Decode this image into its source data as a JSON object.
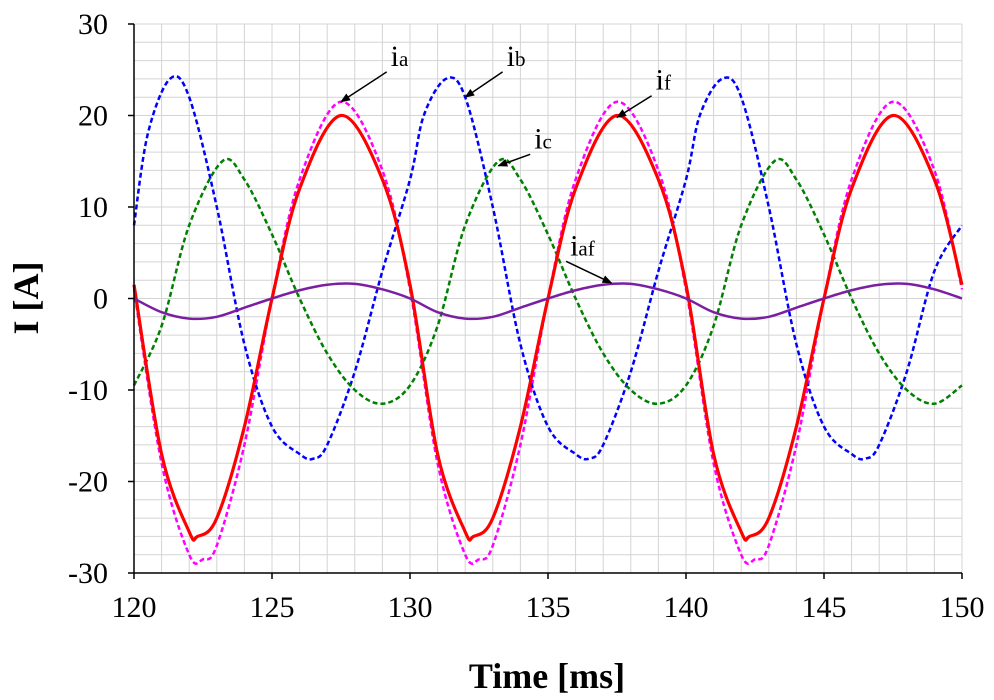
{
  "chart_data": {
    "type": "line",
    "title": "",
    "xlabel": "Time [ms]",
    "ylabel": "I [A]",
    "xlim": [
      120,
      150
    ],
    "ylim": [
      -30,
      30
    ],
    "x_ticks": [
      "120",
      "125",
      "130",
      "135",
      "140",
      "145",
      "150"
    ],
    "y_ticks": [
      "30",
      "20",
      "10",
      "0",
      "-10",
      "-20",
      "-30"
    ],
    "grid": true,
    "legend": "none",
    "colors": {
      "i_a": "#ff00ff",
      "i_b": "#0000ff",
      "i_c": "#008000",
      "i_f": "#ff0000",
      "i_af": "#7b1fa2"
    },
    "series": [
      {
        "key": "i_a",
        "style": "dashed",
        "x": [
          120,
          121,
          122,
          122.5,
          123,
          124,
          125,
          126,
          127.5,
          129,
          130,
          131,
          132,
          132.5,
          133,
          134,
          135,
          136,
          137.5,
          139,
          140,
          141,
          142,
          142.5,
          143,
          144,
          145,
          146,
          147.5,
          149,
          150
        ],
        "y": [
          1,
          -18,
          -28,
          -28.5,
          -27,
          -16,
          0,
          13,
          21.5,
          14,
          1,
          -18,
          -28,
          -28.5,
          -27,
          -16,
          0,
          13,
          21.5,
          14,
          1,
          -18,
          -28,
          -28.5,
          -27,
          -16,
          0,
          13,
          21.5,
          14,
          1
        ]
      },
      {
        "key": "i_b",
        "style": "dashed",
        "x": [
          120,
          120.5,
          121.3,
          122,
          123,
          124,
          125,
          126,
          126.5,
          127,
          128,
          129,
          130,
          130.5,
          131.3,
          132,
          133,
          134,
          135,
          136,
          136.5,
          137,
          138,
          139,
          140,
          140.5,
          141.3,
          142,
          143,
          144,
          145,
          146,
          146.5,
          147,
          148,
          149,
          150
        ],
        "y": [
          8,
          18,
          24,
          22,
          10,
          -5,
          -14,
          -17,
          -17.5,
          -16,
          -8,
          3,
          13,
          20,
          24,
          22,
          10,
          -5,
          -14,
          -17,
          -17.5,
          -16,
          -8,
          3,
          13,
          20,
          24,
          22,
          10,
          -5,
          -14,
          -17,
          -17.5,
          -16,
          -8,
          3,
          8
        ]
      },
      {
        "key": "i_c",
        "style": "dashed",
        "x": [
          120,
          121,
          122,
          123.2,
          124,
          125,
          126,
          127,
          128,
          129,
          130,
          131,
          132,
          133.2,
          134,
          135,
          136,
          137,
          138,
          139,
          140,
          141,
          142,
          143.2,
          144,
          145,
          146,
          147,
          148,
          149,
          150
        ],
        "y": [
          -9.5,
          -3,
          8,
          15,
          13,
          7,
          0,
          -6,
          -10,
          -11.5,
          -9.5,
          -3,
          8,
          15,
          13,
          7,
          0,
          -6,
          -10,
          -11.5,
          -9.5,
          -3,
          8,
          15,
          13,
          7,
          0,
          -6,
          -10,
          -11.5,
          -9.5
        ]
      },
      {
        "key": "i_f",
        "style": "solid",
        "x": [
          120,
          121,
          122,
          122.3,
          123,
          124,
          125,
          126,
          127.5,
          129,
          130,
          131,
          132,
          132.3,
          133,
          134,
          135,
          136,
          137.5,
          139,
          140,
          141,
          142,
          142.3,
          143,
          144,
          145,
          146,
          147.5,
          149,
          150
        ],
        "y": [
          1.5,
          -17,
          -25.5,
          -26,
          -24,
          -14,
          0,
          12,
          20,
          13,
          1.5,
          -17,
          -25.5,
          -26,
          -24,
          -14,
          0,
          12,
          20,
          13,
          1.5,
          -17,
          -25.5,
          -26,
          -24,
          -14,
          0,
          12,
          20,
          13,
          1.5
        ]
      },
      {
        "key": "i_af",
        "style": "solid",
        "x": [
          120,
          121,
          122,
          123,
          124,
          125,
          126,
          127,
          128,
          129,
          130,
          131,
          132,
          133,
          134,
          135,
          136,
          137,
          138,
          139,
          140,
          141,
          142,
          143,
          144,
          145,
          146,
          147,
          148,
          149,
          150
        ],
        "y": [
          0,
          -1.5,
          -2.2,
          -2,
          -1,
          0,
          0.9,
          1.5,
          1.6,
          1,
          0,
          -1.5,
          -2.2,
          -2,
          -1,
          0,
          0.9,
          1.5,
          1.6,
          1,
          0,
          -1.5,
          -2.2,
          -2,
          -1,
          0,
          0.9,
          1.5,
          1.6,
          1,
          0
        ]
      }
    ],
    "annotations": [
      {
        "main": "i",
        "sub": "a",
        "target": [
          127.5,
          21.5
        ],
        "label_at": [
          129.3,
          25.2
        ]
      },
      {
        "main": "i",
        "sub": "b",
        "target": [
          132.0,
          22.0
        ],
        "label_at": [
          133.5,
          25.2
        ]
      },
      {
        "main": "i",
        "sub": "c",
        "target": [
          133.2,
          14.5
        ],
        "label_at": [
          134.5,
          16.2
        ]
      },
      {
        "main": "i",
        "sub": "f",
        "target": [
          137.5,
          19.8
        ],
        "label_at": [
          138.9,
          22.6
        ]
      },
      {
        "main": "i",
        "sub": "af",
        "target": [
          137.3,
          1.7
        ],
        "label_at": [
          135.8,
          4.5
        ]
      }
    ]
  }
}
